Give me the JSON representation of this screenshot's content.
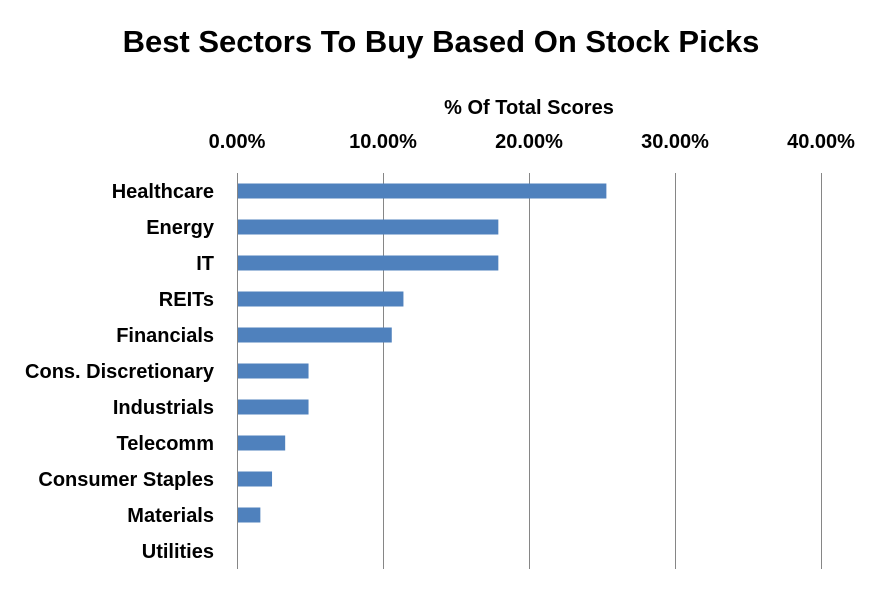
{
  "chart_data": {
    "type": "bar",
    "orientation": "horizontal",
    "title": "Best Sectors To Buy Based On Stock Picks",
    "xlabel": "% Of Total Scores",
    "ylabel": "",
    "x_axis_position": "top",
    "xlim": [
      0,
      40
    ],
    "x_ticks": [
      0,
      10,
      20,
      30,
      40
    ],
    "x_tick_labels": [
      "0.00%",
      "10.00%",
      "20.00%",
      "30.00%",
      "40.00%"
    ],
    "grid": "vertical",
    "legend": "none",
    "categories": [
      "Healthcare",
      "Energy",
      "IT",
      "REITs",
      "Financials",
      "Cons. Discretionary",
      "Industrials",
      "Telecomm",
      "Consumer Staples",
      "Materials",
      "Utilities"
    ],
    "values": [
      25.3,
      17.9,
      17.9,
      11.4,
      10.6,
      4.9,
      4.9,
      3.3,
      2.4,
      1.6,
      0.0
    ],
    "bar_color": "#4F81BD",
    "grid_color": "#868686"
  }
}
